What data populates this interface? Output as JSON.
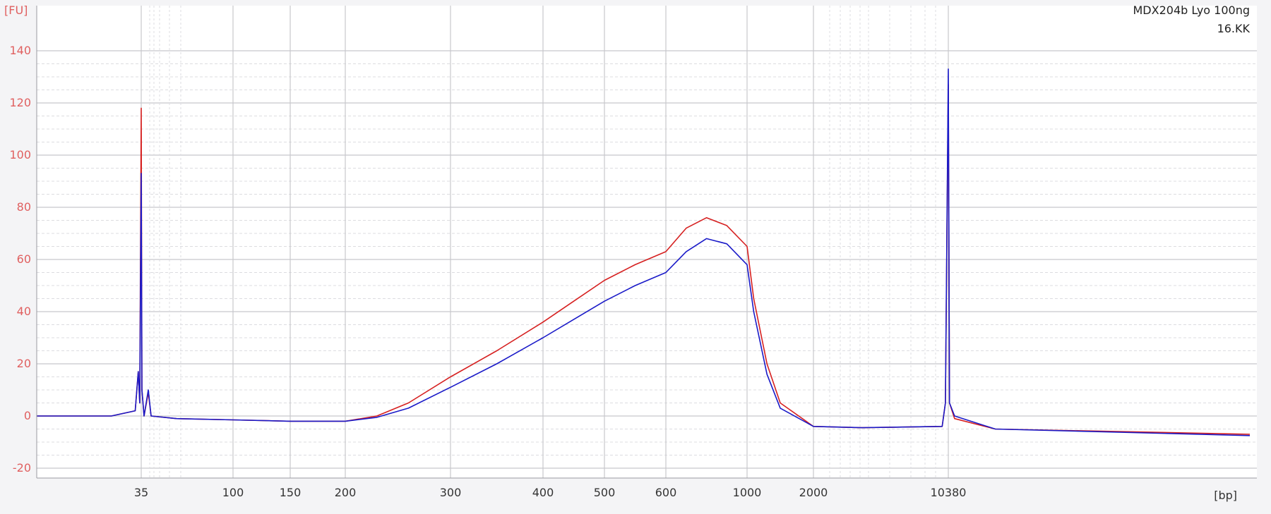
{
  "chart_data": {
    "type": "line",
    "title": "",
    "sample_name": "MDX204b Lyo 100ng",
    "sample_sub": "16.KK",
    "ylabel": "[FU]",
    "xlabel": "[bp]",
    "ylim": [
      -22,
      148
    ],
    "y_ticks": [
      140,
      120,
      100,
      80,
      60,
      40,
      20,
      0,
      -20
    ],
    "x_ticks": [
      "35",
      "100",
      "150",
      "200",
      "300",
      "400",
      "500",
      "600",
      "1000",
      "2000",
      "10380"
    ],
    "colors": {
      "red_series": "#d62020",
      "blue_series": "#1a1ac8",
      "axis_text": "#e06060",
      "grid": "#c8c8cc",
      "grid_minor": "#dcdce0"
    },
    "series": [
      {
        "color": "#d62020",
        "points": [
          [
            "0",
            0
          ],
          [
            "25",
            0
          ],
          [
            "33",
            2
          ],
          [
            "34",
            17
          ],
          [
            "34.5",
            5
          ],
          [
            "35",
            118
          ],
          [
            "35.5",
            10
          ],
          [
            "37",
            0
          ],
          [
            "40",
            9
          ],
          [
            "42",
            0
          ],
          [
            "60",
            -1
          ],
          [
            "100",
            -1.5
          ],
          [
            "150",
            -2
          ],
          [
            "200",
            -2
          ],
          [
            "230",
            0
          ],
          [
            "260",
            5
          ],
          [
            "300",
            15
          ],
          [
            "350",
            25
          ],
          [
            "400",
            36
          ],
          [
            "450",
            44
          ],
          [
            "500",
            52
          ],
          [
            "550",
            58
          ],
          [
            "600",
            63
          ],
          [
            "700",
            72
          ],
          [
            "800",
            76
          ],
          [
            "900",
            73
          ],
          [
            "1000",
            65
          ],
          [
            "1100",
            45
          ],
          [
            "1300",
            20
          ],
          [
            "1500",
            5
          ],
          [
            "2000",
            -4
          ],
          [
            "5000",
            -4.5
          ],
          [
            "10000",
            -4
          ],
          [
            "10200",
            5
          ],
          [
            "10380",
            127
          ],
          [
            "10500",
            5
          ],
          [
            "11000",
            -1
          ],
          [
            "15000",
            -5
          ],
          [
            "40000",
            -7
          ]
        ]
      },
      {
        "color": "#1a1ac8",
        "points": [
          [
            "0",
            0
          ],
          [
            "25",
            0
          ],
          [
            "33",
            2
          ],
          [
            "34",
            17
          ],
          [
            "34.5",
            5
          ],
          [
            "35",
            93
          ],
          [
            "35.5",
            10
          ],
          [
            "37",
            0
          ],
          [
            "40",
            10
          ],
          [
            "42",
            0
          ],
          [
            "60",
            -1
          ],
          [
            "100",
            -1.5
          ],
          [
            "150",
            -2
          ],
          [
            "200",
            -2
          ],
          [
            "230",
            -0.5
          ],
          [
            "260",
            3
          ],
          [
            "300",
            11
          ],
          [
            "350",
            20
          ],
          [
            "400",
            30
          ],
          [
            "450",
            37
          ],
          [
            "500",
            44
          ],
          [
            "550",
            50
          ],
          [
            "600",
            55
          ],
          [
            "700",
            63
          ],
          [
            "800",
            68
          ],
          [
            "900",
            66
          ],
          [
            "1000",
            58
          ],
          [
            "1100",
            40
          ],
          [
            "1300",
            16
          ],
          [
            "1500",
            3
          ],
          [
            "2000",
            -4
          ],
          [
            "5000",
            -4.5
          ],
          [
            "10000",
            -4
          ],
          [
            "10200",
            5
          ],
          [
            "10380",
            133
          ],
          [
            "10500",
            5
          ],
          [
            "11000",
            0
          ],
          [
            "15000",
            -5
          ],
          [
            "40000",
            -7.5
          ]
        ]
      }
    ]
  }
}
